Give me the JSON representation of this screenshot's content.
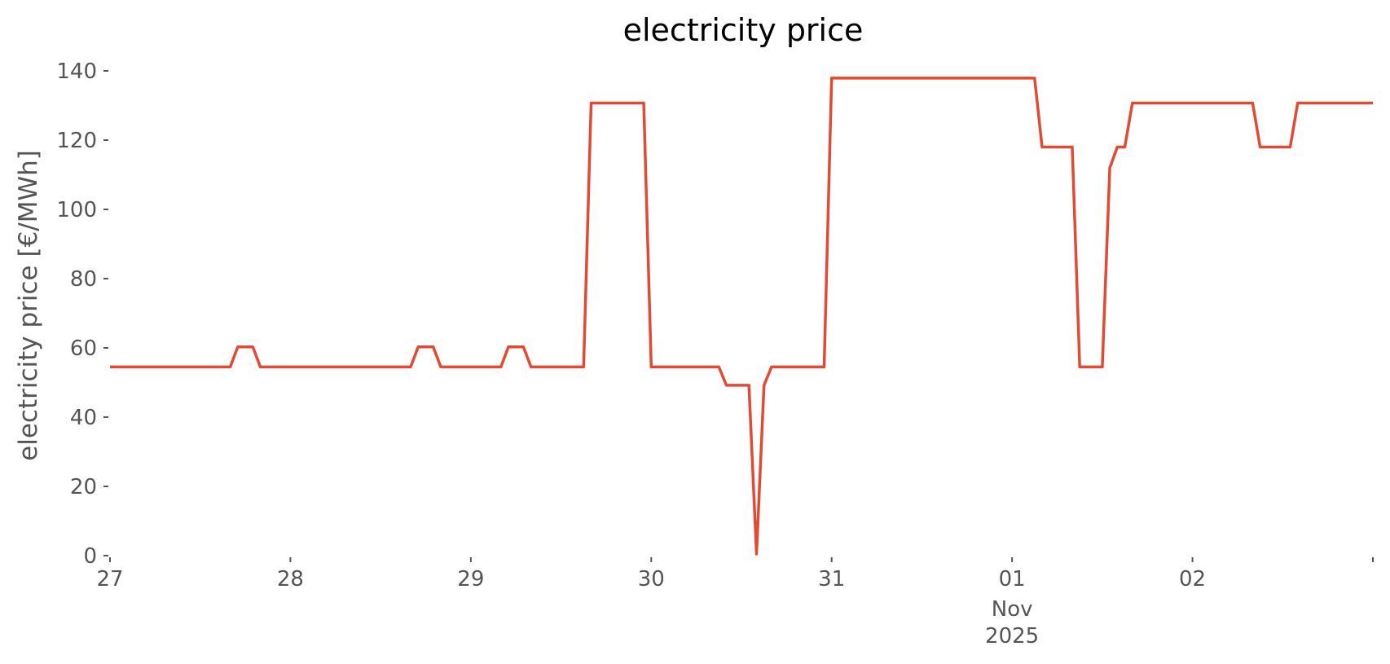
{
  "chart_data": {
    "type": "line",
    "title": "electricity price",
    "xlabel": "",
    "ylabel": "electricity price [€/MWh]",
    "ylim": [
      0,
      140
    ],
    "xlim": [
      "2025-10-27T00:00",
      "2025-11-03T00:00"
    ],
    "grid": false,
    "line_color": "#E24A33",
    "y_ticks": [
      0,
      20,
      40,
      60,
      80,
      100,
      120,
      140
    ],
    "x_ticks": [
      {
        "date": "2025-10-27T00:00",
        "label": "27"
      },
      {
        "date": "2025-10-28T00:00",
        "label": "28"
      },
      {
        "date": "2025-10-29T00:00",
        "label": "29"
      },
      {
        "date": "2025-10-30T00:00",
        "label": "30"
      },
      {
        "date": "2025-10-31T00:00",
        "label": "31"
      },
      {
        "date": "2025-11-01T00:00",
        "label": "01",
        "sublabel": "Nov",
        "sublabel2": "2025"
      },
      {
        "date": "2025-11-02T00:00",
        "label": "02"
      },
      {
        "date": "2025-11-03T00:00",
        "label": ""
      }
    ],
    "series": [
      {
        "points": [
          [
            "2025-10-27T00:00",
            54.5
          ],
          [
            "2025-10-27T16:00",
            54.5
          ],
          [
            "2025-10-27T17:00",
            60.3
          ],
          [
            "2025-10-27T19:00",
            60.3
          ],
          [
            "2025-10-27T20:00",
            54.5
          ],
          [
            "2025-10-28T16:00",
            54.5
          ],
          [
            "2025-10-28T17:00",
            60.3
          ],
          [
            "2025-10-28T19:00",
            60.3
          ],
          [
            "2025-10-28T20:00",
            54.5
          ],
          [
            "2025-10-29T04:00",
            54.5
          ],
          [
            "2025-10-29T05:00",
            60.3
          ],
          [
            "2025-10-29T07:00",
            60.3
          ],
          [
            "2025-10-29T08:00",
            54.5
          ],
          [
            "2025-10-29T15:00",
            54.5
          ],
          [
            "2025-10-29T16:00",
            130.7
          ],
          [
            "2025-10-29T23:00",
            130.7
          ],
          [
            "2025-10-30T00:00",
            54.5
          ],
          [
            "2025-10-30T09:00",
            54.5
          ],
          [
            "2025-10-30T10:00",
            49.2
          ],
          [
            "2025-10-30T13:00",
            49.2
          ],
          [
            "2025-10-30T14:00",
            0.5
          ],
          [
            "2025-10-30T15:00",
            49.2
          ],
          [
            "2025-10-30T16:00",
            54.5
          ],
          [
            "2025-10-30T23:00",
            54.5
          ],
          [
            "2025-10-31T00:00",
            137.9
          ],
          [
            "2025-11-01T03:00",
            137.9
          ],
          [
            "2025-11-01T04:00",
            118.0
          ],
          [
            "2025-11-01T08:00",
            118.0
          ],
          [
            "2025-11-01T09:00",
            54.5
          ],
          [
            "2025-11-01T12:00",
            54.5
          ],
          [
            "2025-11-01T13:00",
            112.0
          ],
          [
            "2025-11-01T14:00",
            118.0
          ],
          [
            "2025-11-01T15:00",
            118.0
          ],
          [
            "2025-11-01T16:00",
            130.7
          ],
          [
            "2025-11-02T08:00",
            130.7
          ],
          [
            "2025-11-02T09:00",
            118.0
          ],
          [
            "2025-11-02T13:00",
            118.0
          ],
          [
            "2025-11-02T14:00",
            130.7
          ],
          [
            "2025-11-03T00:00",
            130.7
          ]
        ]
      }
    ]
  }
}
